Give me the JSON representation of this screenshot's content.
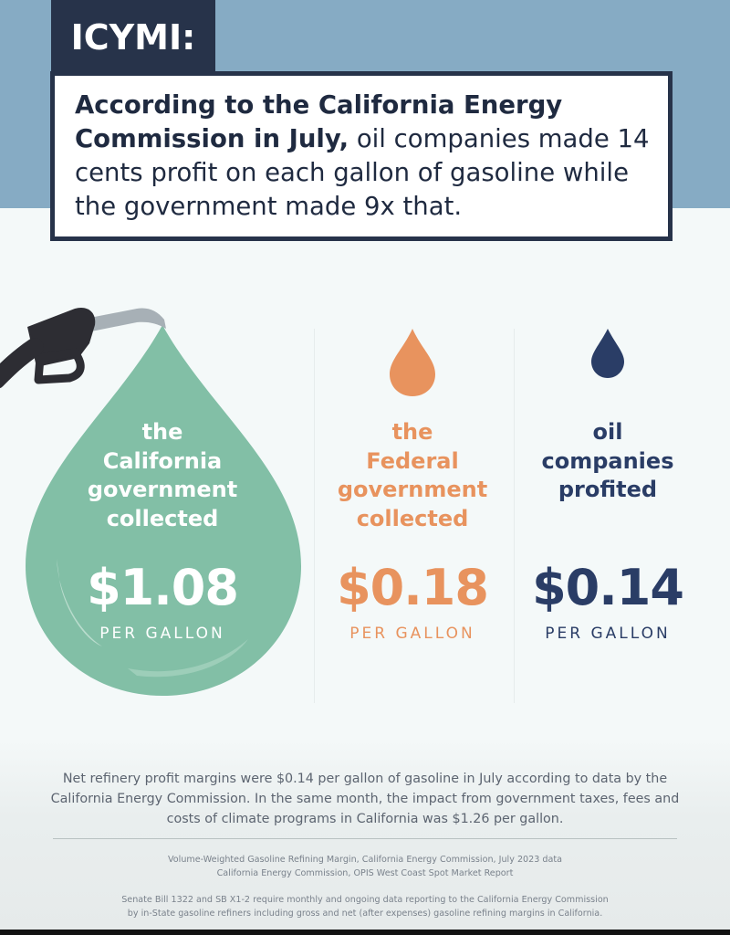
{
  "header": {
    "tag": "ICYMI:",
    "headline_bold": "According to the California Energy Commission in July,",
    "headline_rest": " oil companies made 14 cents profit on each gallon of gasoline while the government made 9x that."
  },
  "columns": [
    {
      "label": [
        "the",
        "California",
        "government",
        "collected"
      ],
      "value": "$1.08",
      "unit": "PER GALLON",
      "color": "#ffffff"
    },
    {
      "label": [
        "the",
        "Federal",
        "government",
        "collected"
      ],
      "value": "$0.18",
      "unit": "PER GALLON",
      "color": "#e8935e"
    },
    {
      "label": [
        "oil",
        "companies",
        "profited"
      ],
      "value": "$0.14",
      "unit": "PER GALLON",
      "color": "#2a3d66"
    }
  ],
  "colors": {
    "ca_drop": "#82bfa6",
    "fed_drop": "#e8935e",
    "oil_drop": "#2a3d66",
    "navy": "#27334a",
    "sky": "#86abc4"
  },
  "footer": {
    "summary": "Net refinery profit margins were $0.14 per gallon of gasoline in July according to data by the California Energy Commission. In the same month, the impact from government taxes, fees and costs of climate programs in California was $1.26 per gallon.",
    "sources": [
      "Volume-Weighted Gasoline Refining Margin, California Energy Commission, July 2023 data",
      "California Energy Commission, OPIS West Coast Spot Market Report"
    ],
    "legal": [
      "Senate Bill 1322 and SB X1-2 require monthly and ongoing data reporting to the California Energy Commission",
      "by in-State gasoline refiners including gross and net (after expenses) gasoline refining margins in California."
    ]
  }
}
